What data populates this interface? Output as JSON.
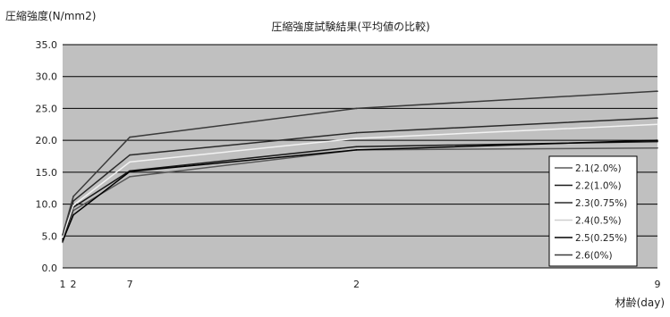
{
  "chart_data": {
    "type": "line",
    "title": "圧縮強度試験結果(平均値の比較)",
    "ylabel": "圧縮強度(N/mm2)",
    "xlabel": "材齢(day)",
    "ylim": [
      0,
      35
    ],
    "y_ticks": [
      "0.0",
      "5.0",
      "10.0",
      "15.0",
      "20.0",
      "25.0",
      "30.0",
      "35.0"
    ],
    "x_tick_labels": [
      "1",
      "2",
      "7",
      "2",
      "9"
    ],
    "x": [
      1,
      2,
      7,
      28,
      91
    ],
    "grid": true,
    "plot_background": "#c0c0c0",
    "legend_position": "right",
    "series": [
      {
        "name": "2.1(2.0%)",
        "color": "#5a5a5a",
        "values": [
          4.0,
          9.0,
          14.3,
          18.5,
          18.8
        ]
      },
      {
        "name": "2.2(1.0%)",
        "color": "#1a1a1a",
        "values": [
          4.5,
          9.5,
          15.2,
          19.0,
          19.8
        ]
      },
      {
        "name": "2.3(0.75%)",
        "color": "#2a2a2a",
        "values": [
          5.0,
          10.5,
          17.7,
          21.2,
          23.5
        ]
      },
      {
        "name": "2.4(0.5%)",
        "color": "#f2f2f2",
        "values": [
          4.8,
          9.8,
          16.6,
          20.3,
          22.5
        ]
      },
      {
        "name": "2.5(0.25%)",
        "color": "#000000",
        "values": [
          4.2,
          8.3,
          15.1,
          18.5,
          20.0
        ]
      },
      {
        "name": "2.6(0%)",
        "color": "#3a3a3a",
        "values": [
          5.2,
          11.2,
          20.5,
          25.0,
          27.7
        ]
      }
    ]
  }
}
